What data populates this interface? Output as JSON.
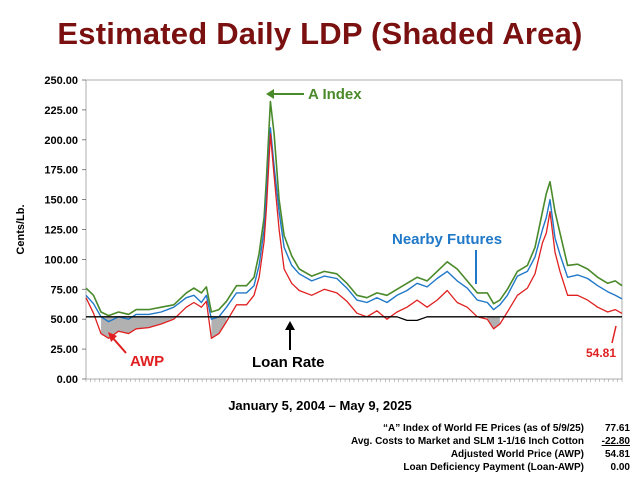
{
  "title": "Estimated Daily LDP (Shaded Area)",
  "subtitle": "January 5, 2004 – May 9, 2025",
  "calc": [
    {
      "label": "“A” Index of World FE Prices (as of 5/9/25)",
      "value": "77.61",
      "underline": false
    },
    {
      "label": "Avg. Costs to Market and SLM 1-1/16 Inch Cotton",
      "value": "-22.80",
      "underline": true
    },
    {
      "label": "Adjusted World Price (AWP)",
      "value": "54.81",
      "underline": false
    },
    {
      "label": "Loan Deficiency Payment (Loan-AWP)",
      "value": "0.00",
      "underline": false
    }
  ],
  "annotations": {
    "a_index": "A Index",
    "nearby": "Nearby Futures",
    "awp": "AWP",
    "loan": "Loan Rate",
    "last_awp": "54.81"
  },
  "colors": {
    "a_index": "#4a8a2a",
    "nearby": "#1f78c8",
    "awp": "#e02020",
    "loan": "#000000",
    "shade": "#a9a9a9",
    "title": "#7a1010"
  },
  "chart_data": {
    "type": "line",
    "title": "Estimated Daily LDP (Shaded Area)",
    "xlabel": "January 5, 2004 – May 9, 2025",
    "ylabel": "Cents/Lb.",
    "ylim": [
      0,
      250
    ],
    "xlim": [
      2004.0,
      2025.37
    ],
    "yticks": [
      "0.00",
      "25.00",
      "50.00",
      "75.00",
      "100.00",
      "125.00",
      "150.00",
      "175.00",
      "200.00",
      "225.00",
      "250.00"
    ],
    "grid": false,
    "x": [
      2004.0,
      2004.3,
      2004.6,
      2004.9,
      2005.3,
      2005.7,
      2006.0,
      2006.5,
      2007.0,
      2007.5,
      2008.0,
      2008.3,
      2008.6,
      2008.8,
      2009.0,
      2009.3,
      2009.6,
      2010.0,
      2010.4,
      2010.7,
      2010.9,
      2011.1,
      2011.2,
      2011.35,
      2011.5,
      2011.7,
      2011.9,
      2012.2,
      2012.5,
      2013.0,
      2013.5,
      2014.0,
      2014.4,
      2014.8,
      2015.2,
      2015.6,
      2016.0,
      2016.4,
      2016.8,
      2017.2,
      2017.6,
      2018.0,
      2018.4,
      2018.8,
      2019.2,
      2019.6,
      2020.0,
      2020.25,
      2020.5,
      2020.8,
      2021.2,
      2021.6,
      2021.9,
      2022.2,
      2022.35,
      2022.5,
      2022.7,
      2022.9,
      2023.2,
      2023.6,
      2024.0,
      2024.4,
      2024.8,
      2025.1,
      2025.37
    ],
    "series": [
      {
        "name": "A Index",
        "values": [
          76,
          70,
          56,
          53,
          56,
          54,
          58,
          58,
          60,
          62,
          72,
          76,
          72,
          77,
          56,
          58,
          65,
          78,
          78,
          85,
          105,
          135,
          170,
          232,
          205,
          150,
          120,
          103,
          92,
          86,
          90,
          88,
          80,
          70,
          68,
          72,
          70,
          75,
          80,
          85,
          82,
          90,
          98,
          92,
          82,
          72,
          72,
          63,
          66,
          75,
          90,
          95,
          110,
          140,
          155,
          165,
          140,
          122,
          95,
          96,
          92,
          85,
          80,
          82,
          78
        ]
      },
      {
        "name": "Nearby Futures",
        "values": [
          70,
          63,
          52,
          48,
          52,
          50,
          54,
          54,
          56,
          60,
          68,
          70,
          64,
          70,
          50,
          52,
          60,
          72,
          72,
          78,
          95,
          125,
          155,
          210,
          178,
          140,
          110,
          95,
          88,
          82,
          86,
          84,
          76,
          66,
          64,
          68,
          64,
          70,
          74,
          80,
          77,
          84,
          90,
          82,
          76,
          66,
          64,
          58,
          62,
          70,
          86,
          90,
          102,
          125,
          135,
          150,
          118,
          104,
          85,
          87,
          84,
          78,
          73,
          70,
          67
        ]
      },
      {
        "name": "AWP",
        "values": [
          68,
          55,
          38,
          34,
          40,
          38,
          42,
          43,
          46,
          50,
          60,
          64,
          60,
          65,
          34,
          38,
          48,
          62,
          62,
          70,
          85,
          115,
          145,
          205,
          170,
          125,
          92,
          80,
          74,
          70,
          75,
          72,
          65,
          55,
          52,
          57,
          50,
          56,
          60,
          66,
          60,
          66,
          74,
          64,
          60,
          52,
          50,
          42,
          46,
          56,
          70,
          76,
          88,
          114,
          122,
          140,
          106,
          90,
          70,
          70,
          66,
          60,
          56,
          58,
          54.81
        ]
      },
      {
        "name": "Loan Rate",
        "values": [
          52,
          52,
          52,
          52,
          52,
          52,
          52,
          52,
          52,
          52,
          52,
          52,
          52,
          52,
          52,
          52,
          52,
          52,
          52,
          52,
          52,
          52,
          52,
          52,
          52,
          52,
          52,
          52,
          52,
          52,
          52,
          52,
          52,
          52,
          52,
          52,
          52,
          52,
          49,
          49,
          52,
          52,
          52,
          52,
          52,
          52,
          52,
          52,
          52,
          52,
          52,
          52,
          52,
          52,
          52,
          52,
          52,
          52,
          52,
          52,
          52,
          52,
          52,
          52,
          52
        ]
      }
    ]
  }
}
